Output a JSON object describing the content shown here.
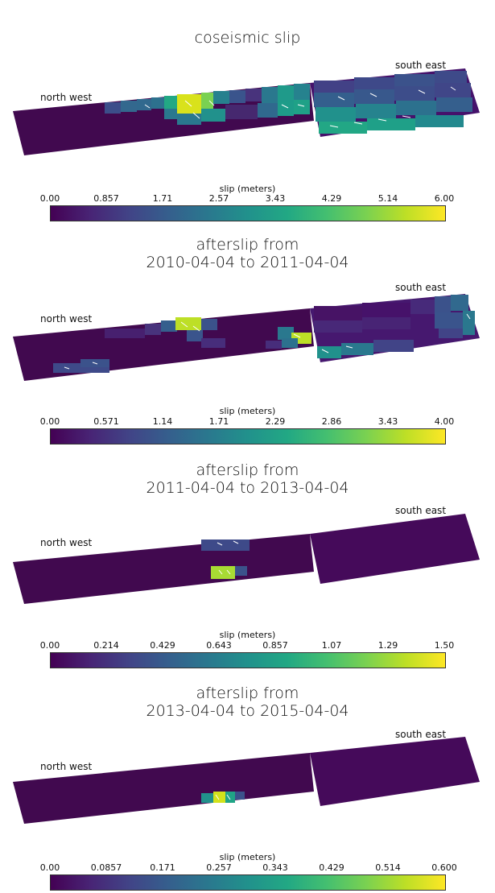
{
  "labels": {
    "nw": "north west",
    "se": "south east",
    "colorbar_title": "slip (meters)"
  },
  "colormap": [
    "#440154",
    "#482475",
    "#414487",
    "#355f8d",
    "#2a788e",
    "#21918c",
    "#22a884",
    "#44bf70",
    "#7ad151",
    "#bddf26",
    "#fde725"
  ],
  "panels": [
    {
      "id": "p1",
      "title_lines": [
        "coseismic slip"
      ],
      "ticks": [
        "0.00",
        "0.857",
        "1.71",
        "2.57",
        "3.43",
        "4.29",
        "5.14",
        "6.00"
      ]
    },
    {
      "id": "p2",
      "title_lines": [
        "afterslip from",
        "2010-04-04 to 2011-04-04"
      ],
      "ticks": [
        "0.00",
        "0.571",
        "1.14",
        "1.71",
        "2.29",
        "2.86",
        "3.43",
        "4.00"
      ]
    },
    {
      "id": "p3",
      "title_lines": [
        "afterslip from",
        "2011-04-04 to 2013-04-04"
      ],
      "ticks": [
        "0.00",
        "0.214",
        "0.429",
        "0.643",
        "0.857",
        "1.07",
        "1.29",
        "1.50"
      ]
    },
    {
      "id": "p4",
      "title_lines": [
        "afterslip from",
        "2013-04-04 to 2015-04-04"
      ],
      "ticks": [
        "0.00",
        "0.0857",
        "0.171",
        "0.257",
        "0.343",
        "0.429",
        "0.514",
        "0.600"
      ]
    }
  ]
}
